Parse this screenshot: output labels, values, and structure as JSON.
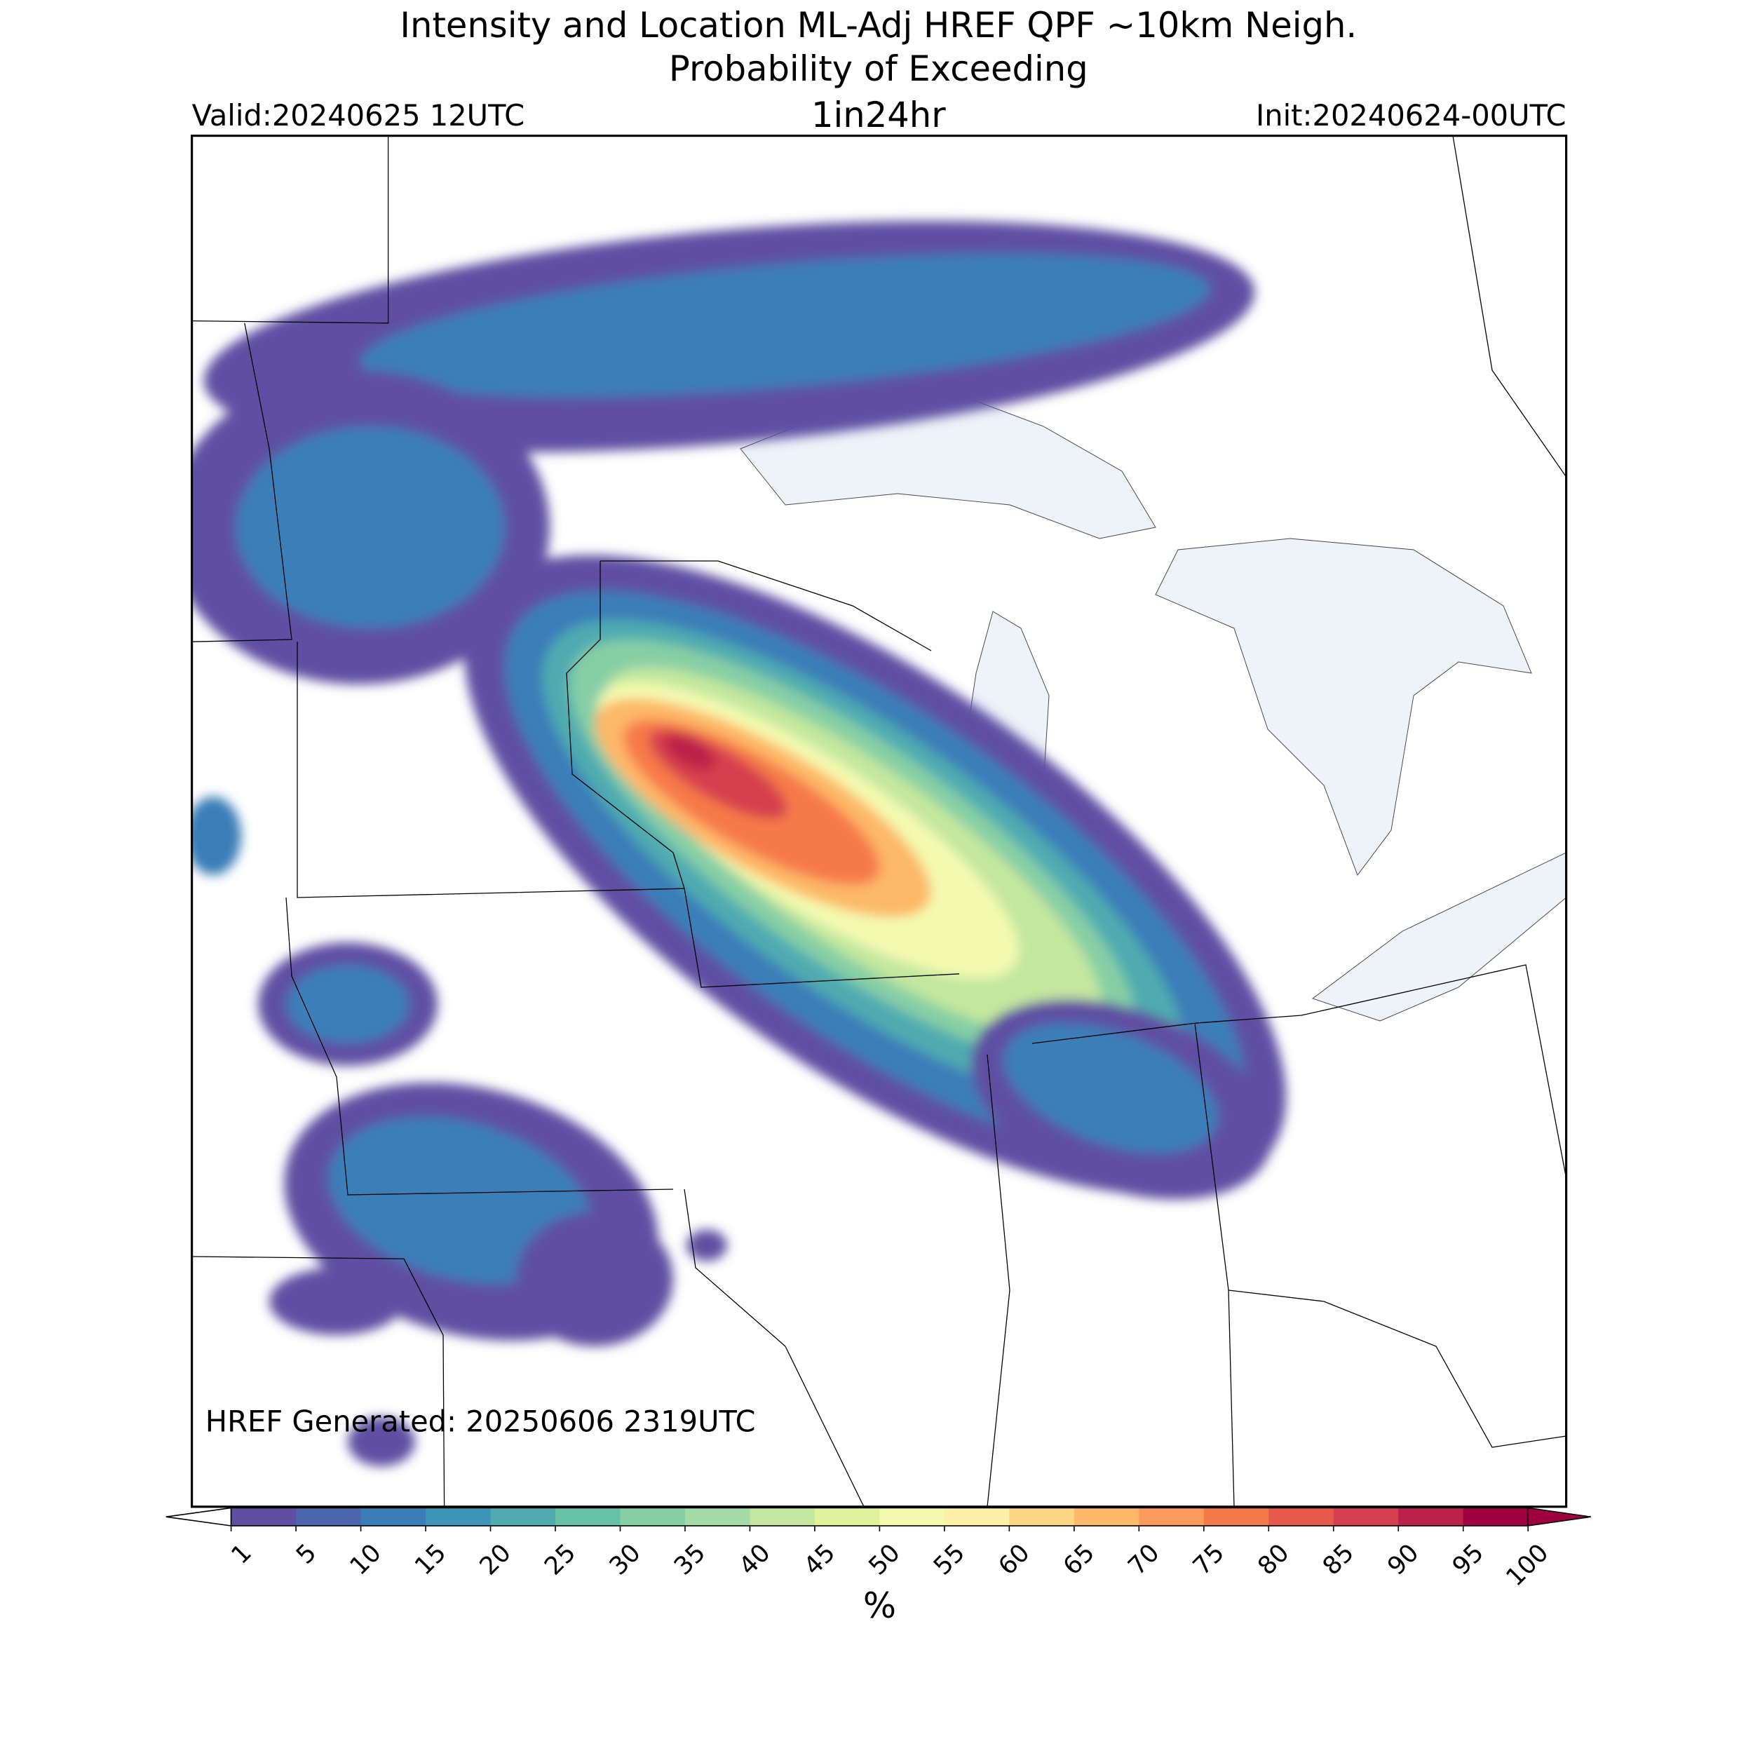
{
  "header": {
    "title_line1": "Intensity and Location ML-Adj HREF QPF ~10km Neigh.",
    "title_line2": "Probability of Exceeding",
    "valid": "Valid:20240625 12UTC",
    "threshold": "1in24hr",
    "init": "Init:20240624-00UTC"
  },
  "map": {
    "note": "HREF Generated: 20250606 2319UTC"
  },
  "colorbar": {
    "levels": [
      1,
      5,
      10,
      15,
      20,
      25,
      30,
      35,
      40,
      45,
      50,
      55,
      60,
      65,
      70,
      75,
      80,
      85,
      90,
      95,
      100
    ],
    "colors": [
      "#5e4fa2",
      "#4b65ae",
      "#3a7eb8",
      "#3d95b8",
      "#4fabb0",
      "#67c1a4",
      "#86cfa5",
      "#a5dba4",
      "#c3e79f",
      "#e0f39a",
      "#f3fab0",
      "#fef0a6",
      "#fed583",
      "#fdb869",
      "#fb9a5a",
      "#f57a49",
      "#e75948",
      "#d6404e",
      "#bb2249",
      "#9e0142"
    ],
    "under_color": "#ffffff",
    "over_color": "#9e0142",
    "label": "%"
  }
}
